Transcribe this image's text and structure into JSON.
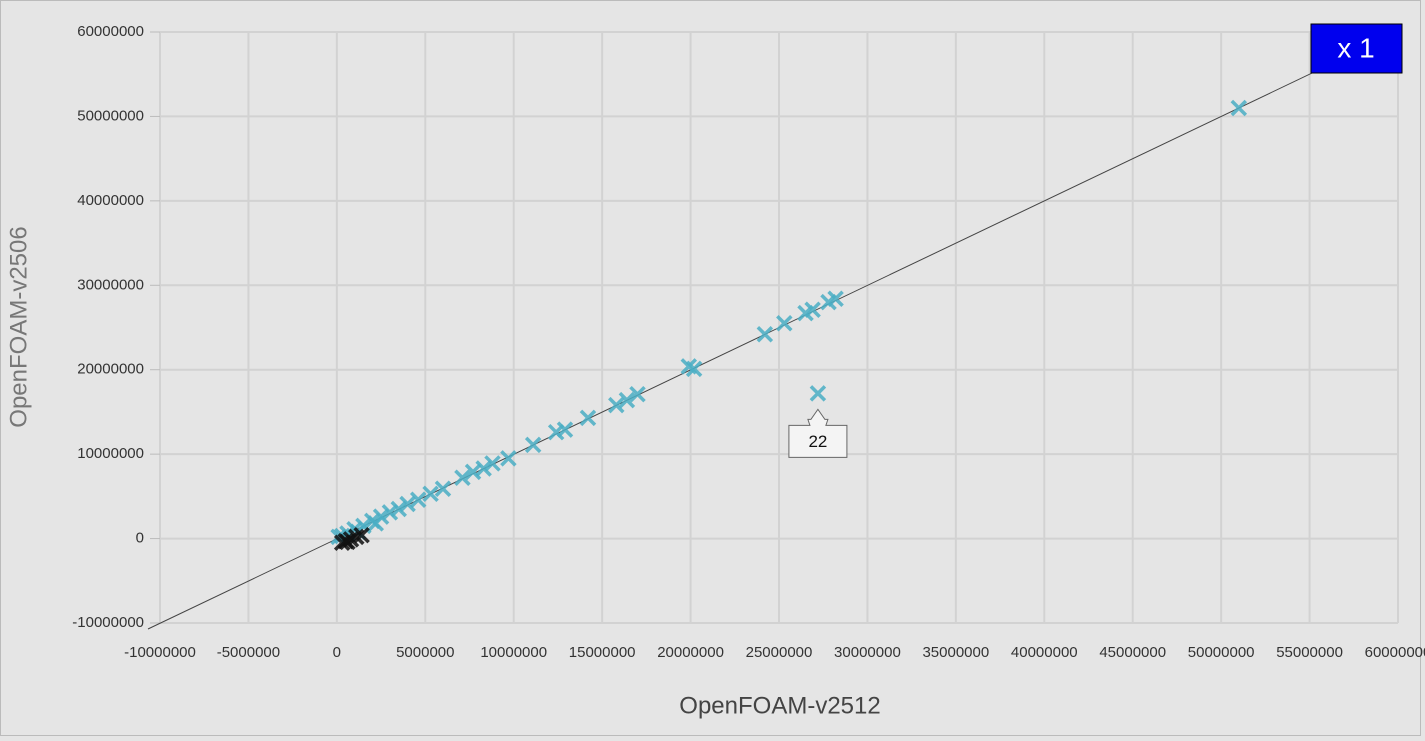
{
  "chart_data": {
    "type": "scatter",
    "x_label": "OpenFOAM-v2512",
    "y_label": "OpenFOAM-v2506",
    "xlim": [
      -10000000,
      60000000
    ],
    "xticks": [
      -10000000,
      -5000000,
      0,
      5000000,
      10000000,
      15000000,
      20000000,
      25000000,
      30000000,
      35000000,
      40000000,
      45000000,
      50000000,
      55000000,
      60000000
    ],
    "ylim": [
      -10000000,
      60000000
    ],
    "yticks": [
      -10000000,
      0,
      10000000,
      20000000,
      30000000,
      40000000,
      50000000,
      60000000
    ],
    "grid": true,
    "diagonal": true,
    "series": [
      {
        "color": "#4aaec4",
        "x": [
          51000000,
          28200000,
          27800000,
          26900000,
          26500000,
          25300000,
          24200000,
          27200000,
          20200000,
          19900000,
          17000000,
          16400000,
          15800000,
          14200000,
          12900000,
          12400000,
          11100000,
          9700000,
          8800000,
          8300000,
          7700000,
          7100000,
          6000000,
          5300000,
          4600000,
          4000000,
          3500000,
          3000000,
          2500000,
          2000000,
          1500000,
          1000000,
          600000,
          300000,
          100000,
          1200000,
          2200000
        ],
        "values": [
          51000000,
          28400000,
          28000000,
          27100000,
          26700000,
          25500000,
          24200000,
          17200000,
          20100000,
          20400000,
          17100000,
          16400000,
          15800000,
          14300000,
          12900000,
          12600000,
          11100000,
          9500000,
          8900000,
          8300000,
          7900000,
          7200000,
          5900000,
          5300000,
          4600000,
          4100000,
          3500000,
          3100000,
          2600000,
          2100000,
          1500000,
          1100000,
          600000,
          300000,
          200000,
          800000,
          1800000
        ]
      },
      {
        "color": "#111111",
        "x": [
          300000,
          500000,
          800000,
          1100000,
          1400000,
          600000
        ],
        "values": [
          -500000,
          -300000,
          -100000,
          200000,
          400000,
          -400000
        ]
      }
    ],
    "annotations": [
      {
        "text": "x 1"
      },
      {
        "text": "22",
        "x": 27200000,
        "y": 17200000
      }
    ]
  }
}
